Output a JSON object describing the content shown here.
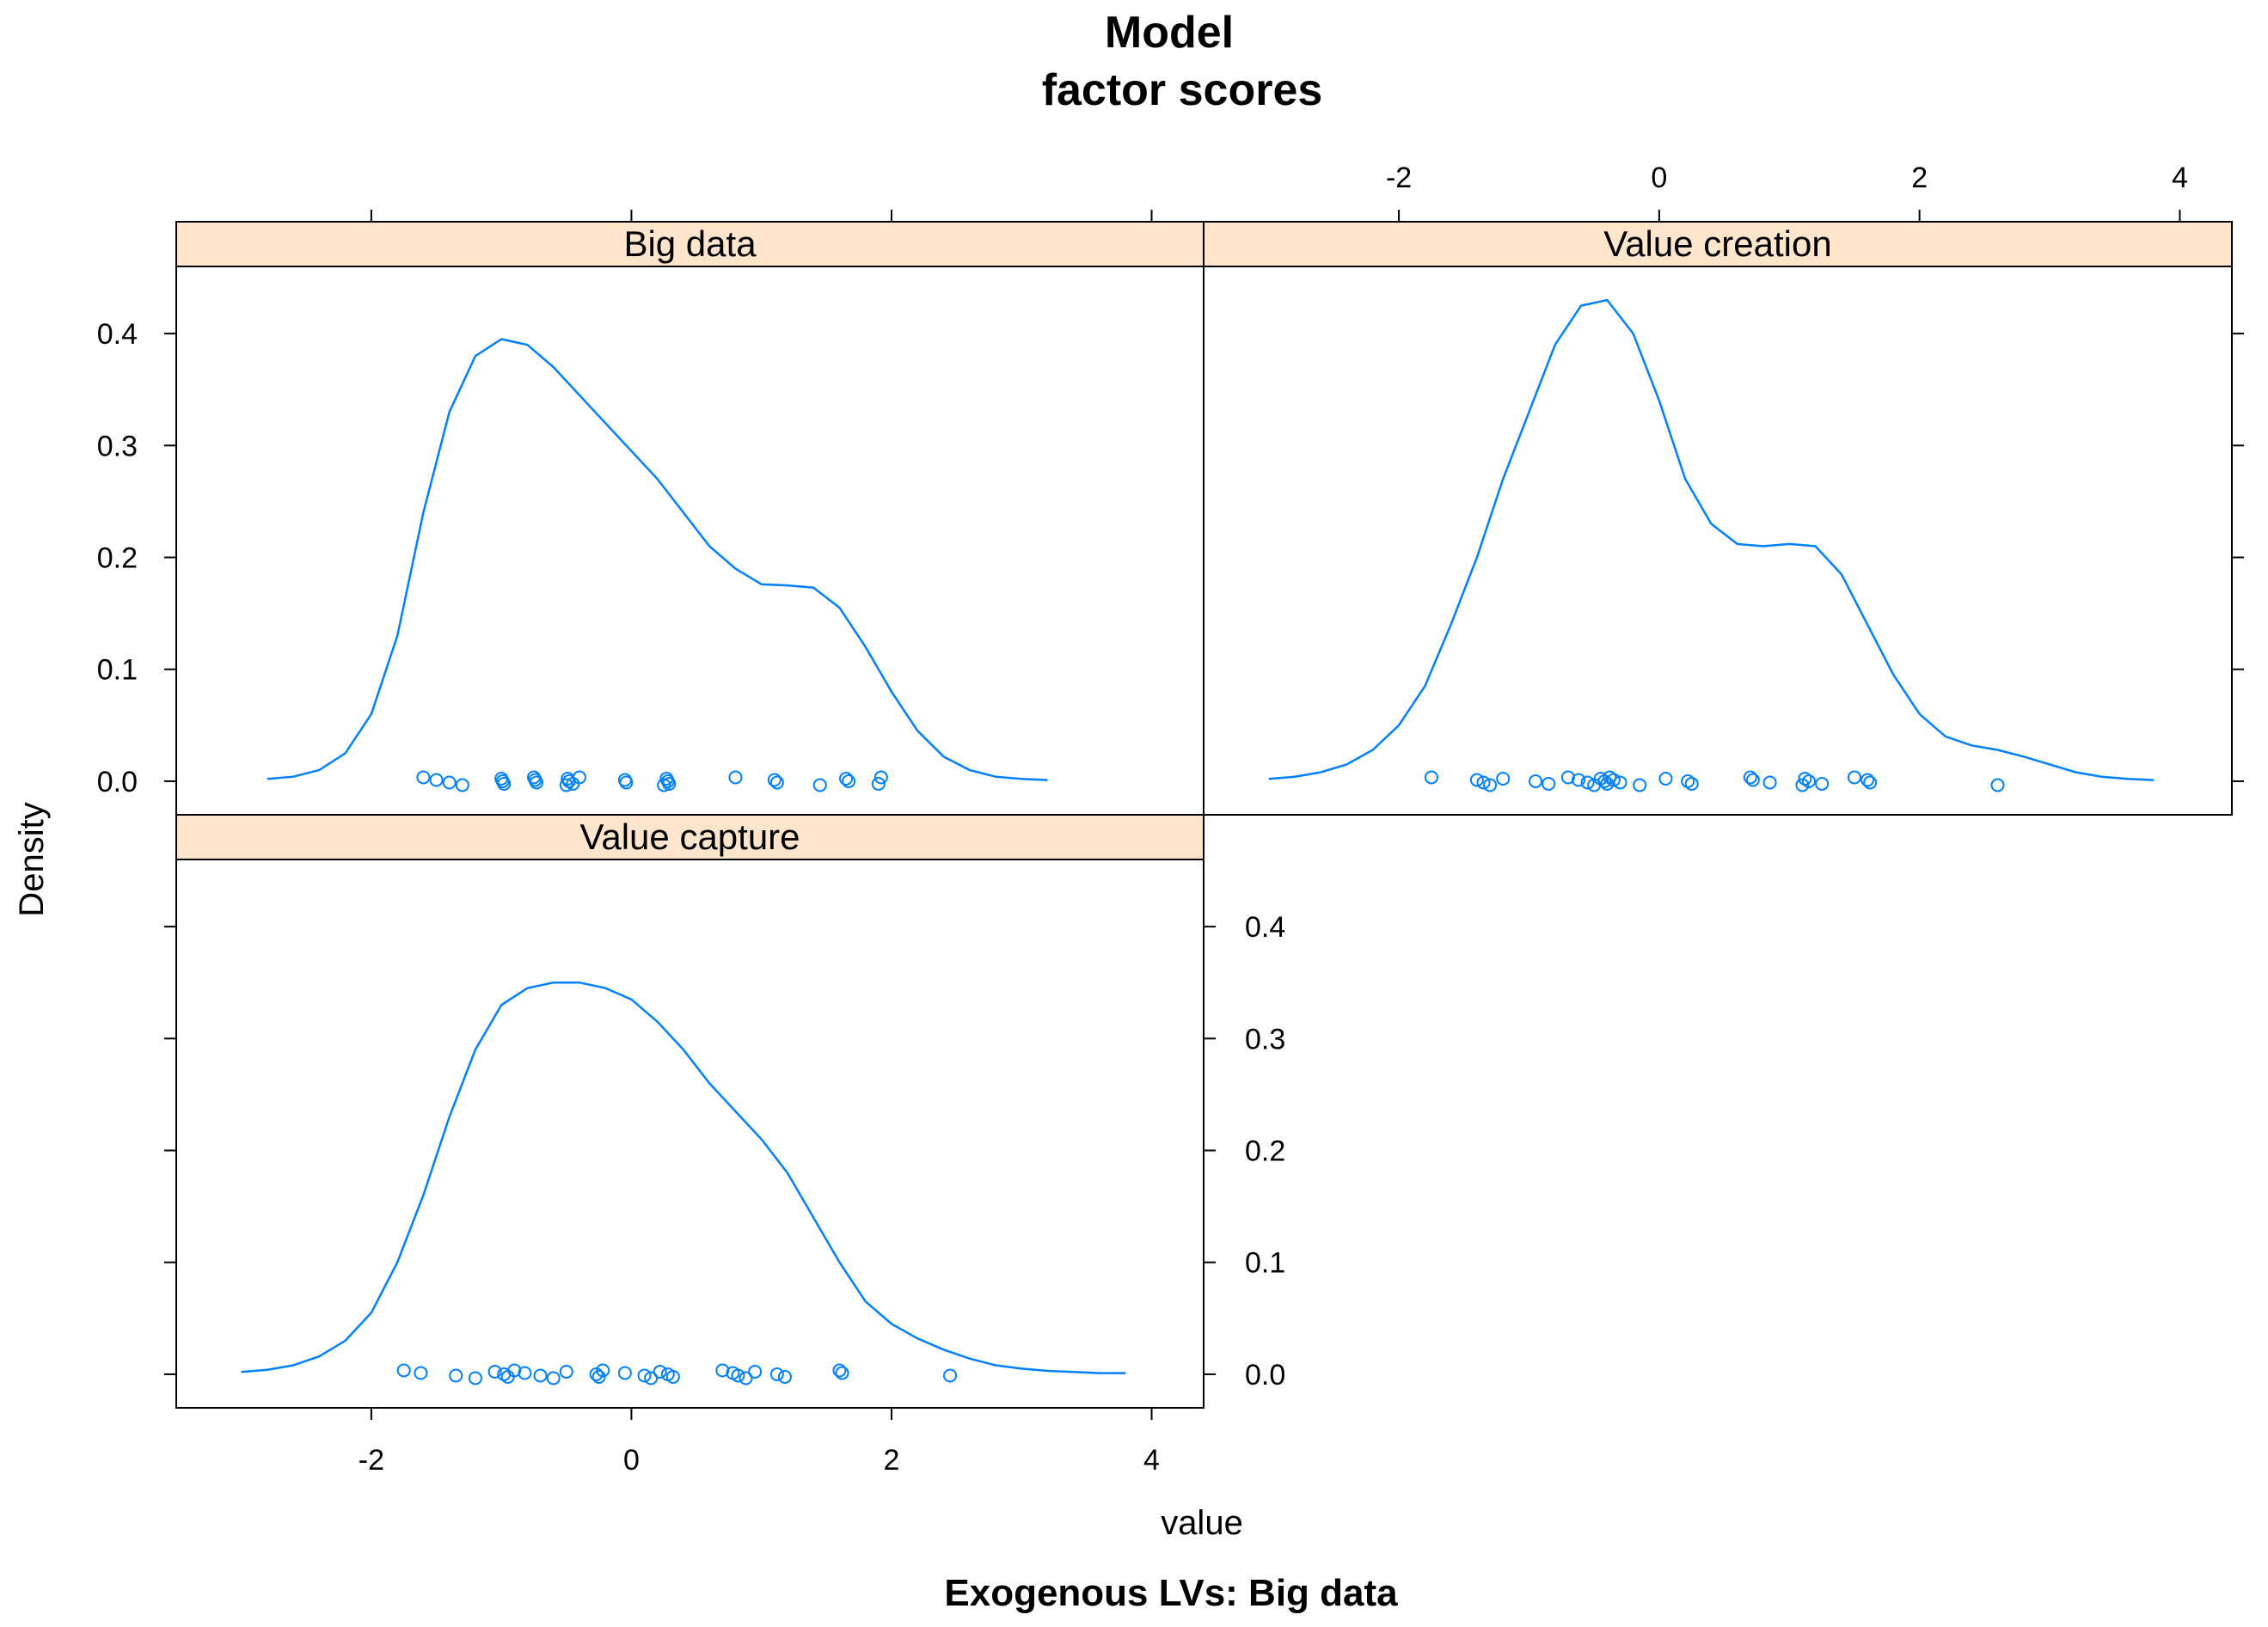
{
  "chart_data": {
    "type": "density",
    "title_line1": "Model",
    "title_line2": "factor scores",
    "xlabel": "value",
    "ylabel": "Density",
    "footer": "Exogenous LVs:  Big data",
    "xlim": [
      -3.5,
      4.4
    ],
    "ylim": [
      -0.03,
      0.46
    ],
    "x_ticks": [
      -2,
      0,
      2,
      4
    ],
    "y_ticks": [
      0.0,
      0.1,
      0.2,
      0.3,
      0.4
    ],
    "y_tick_labels": [
      "0.0",
      "0.1",
      "0.2",
      "0.3",
      "0.4"
    ],
    "colors": {
      "line": "#0080ff",
      "strip": "#ffe5cc",
      "axis": "#000000"
    },
    "panels": [
      {
        "name": "Big data",
        "curve_x": [
          -2.8,
          -2.6,
          -2.4,
          -2.2,
          -2.0,
          -1.8,
          -1.6,
          -1.4,
          -1.2,
          -1.0,
          -0.8,
          -0.6,
          -0.4,
          -0.2,
          0.0,
          0.2,
          0.4,
          0.6,
          0.8,
          1.0,
          1.2,
          1.4,
          1.6,
          1.8,
          2.0,
          2.2,
          2.4,
          2.6,
          2.8,
          3.0,
          3.2
        ],
        "curve_y": [
          0.002,
          0.004,
          0.01,
          0.025,
          0.06,
          0.13,
          0.24,
          0.33,
          0.38,
          0.395,
          0.39,
          0.37,
          0.345,
          0.32,
          0.295,
          0.27,
          0.24,
          0.21,
          0.19,
          0.176,
          0.175,
          0.173,
          0.155,
          0.12,
          0.08,
          0.045,
          0.022,
          0.01,
          0.004,
          0.002,
          0.001
        ],
        "points": [
          -1.6,
          -1.5,
          -1.4,
          -1.3,
          -1.0,
          -0.99,
          -0.98,
          -0.75,
          -0.74,
          -0.73,
          -0.5,
          -0.49,
          -0.48,
          -0.45,
          -0.4,
          -0.05,
          -0.04,
          0.25,
          0.27,
          0.28,
          0.29,
          0.8,
          1.1,
          1.12,
          1.45,
          1.65,
          1.67,
          1.9,
          1.92
        ]
      },
      {
        "name": "Value creation",
        "curve_x": [
          -3.0,
          -2.8,
          -2.6,
          -2.4,
          -2.2,
          -2.0,
          -1.8,
          -1.6,
          -1.4,
          -1.2,
          -1.0,
          -0.8,
          -0.6,
          -0.4,
          -0.2,
          0.0,
          0.2,
          0.4,
          0.6,
          0.8,
          1.0,
          1.2,
          1.4,
          1.6,
          1.8,
          2.0,
          2.2,
          2.4,
          2.6,
          2.8,
          3.0,
          3.2,
          3.4,
          3.6,
          3.8
        ],
        "curve_y": [
          0.002,
          0.004,
          0.008,
          0.015,
          0.028,
          0.05,
          0.085,
          0.14,
          0.2,
          0.27,
          0.33,
          0.39,
          0.425,
          0.43,
          0.4,
          0.34,
          0.27,
          0.23,
          0.212,
          0.21,
          0.212,
          0.21,
          0.185,
          0.14,
          0.095,
          0.06,
          0.04,
          0.032,
          0.028,
          0.022,
          0.015,
          0.008,
          0.004,
          0.002,
          0.001
        ],
        "points": [
          -1.75,
          -1.4,
          -1.35,
          -1.3,
          -1.2,
          -0.95,
          -0.85,
          -0.7,
          -0.62,
          -0.55,
          -0.5,
          -0.45,
          -0.42,
          -0.4,
          -0.38,
          -0.35,
          -0.3,
          -0.15,
          0.05,
          0.22,
          0.25,
          0.7,
          0.72,
          0.85,
          1.1,
          1.12,
          1.15,
          1.25,
          1.5,
          1.6,
          1.62,
          2.6
        ]
      },
      {
        "name": "Value capture",
        "curve_x": [
          -3.0,
          -2.8,
          -2.6,
          -2.4,
          -2.2,
          -2.0,
          -1.8,
          -1.6,
          -1.4,
          -1.2,
          -1.0,
          -0.8,
          -0.6,
          -0.4,
          -0.2,
          0.0,
          0.2,
          0.4,
          0.6,
          0.8,
          1.0,
          1.2,
          1.4,
          1.6,
          1.8,
          2.0,
          2.2,
          2.4,
          2.6,
          2.8,
          3.0,
          3.2,
          3.4,
          3.6,
          3.8
        ],
        "curve_y": [
          0.002,
          0.004,
          0.008,
          0.016,
          0.03,
          0.055,
          0.1,
          0.16,
          0.23,
          0.29,
          0.33,
          0.345,
          0.35,
          0.35,
          0.345,
          0.335,
          0.315,
          0.29,
          0.26,
          0.235,
          0.21,
          0.18,
          0.14,
          0.1,
          0.065,
          0.045,
          0.032,
          0.022,
          0.014,
          0.008,
          0.005,
          0.003,
          0.002,
          0.001,
          0.001
        ],
        "points": [
          -1.75,
          -1.62,
          -1.35,
          -1.2,
          -1.05,
          -0.98,
          -0.95,
          -0.9,
          -0.82,
          -0.7,
          -0.6,
          -0.5,
          -0.27,
          -0.25,
          -0.22,
          -0.05,
          0.1,
          0.15,
          0.22,
          0.28,
          0.32,
          0.7,
          0.78,
          0.82,
          0.88,
          0.95,
          1.12,
          1.18,
          1.6,
          1.62,
          2.45
        ]
      }
    ]
  }
}
